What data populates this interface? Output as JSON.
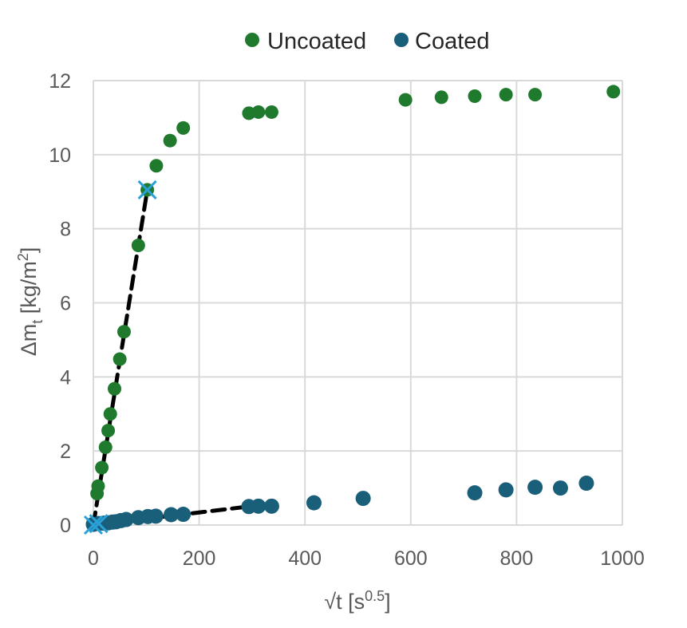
{
  "chart_data": {
    "type": "scatter",
    "xlabel_main": "√t [s",
    "xlabel_sup": "0.5",
    "xlabel_end": "]",
    "ylabel_main": "Δm",
    "ylabel_sub": "t",
    "ylabel_mid": " [kg/m",
    "ylabel_sup": "2",
    "ylabel_end": "]",
    "xlim": [
      0,
      1000
    ],
    "ylim": [
      0,
      12
    ],
    "xticks": [
      0,
      200,
      400,
      600,
      800,
      1000
    ],
    "yticks": [
      0,
      2,
      4,
      6,
      8,
      10,
      12
    ],
    "grid": true,
    "legend_position": "top",
    "series": [
      {
        "name": "Uncoated",
        "color": "#1f7a2e",
        "points": [
          [
            0,
            0.02
          ],
          [
            7,
            0.85
          ],
          [
            9,
            1.05
          ],
          [
            16,
            1.55
          ],
          [
            23,
            2.1
          ],
          [
            28,
            2.55
          ],
          [
            32,
            3.0
          ],
          [
            40,
            3.68
          ],
          [
            50,
            4.48
          ],
          [
            58,
            5.22
          ],
          [
            85,
            7.55
          ],
          [
            102,
            9.05
          ],
          [
            119,
            9.7
          ],
          [
            145,
            10.38
          ],
          [
            170,
            10.72
          ],
          [
            294,
            11.12
          ],
          [
            312,
            11.15
          ],
          [
            337,
            11.15
          ],
          [
            590,
            11.48
          ],
          [
            658,
            11.55
          ],
          [
            721,
            11.58
          ],
          [
            780,
            11.62
          ],
          [
            835,
            11.62
          ],
          [
            983,
            11.7
          ]
        ]
      },
      {
        "name": "Coated",
        "color": "#1a5f7a",
        "points": [
          [
            0,
            0.02
          ],
          [
            10,
            0.04
          ],
          [
            20,
            0.05
          ],
          [
            28,
            0.06
          ],
          [
            36,
            0.08
          ],
          [
            43,
            0.09
          ],
          [
            52,
            0.12
          ],
          [
            62,
            0.15
          ],
          [
            85,
            0.2
          ],
          [
            103,
            0.23
          ],
          [
            118,
            0.24
          ],
          [
            147,
            0.28
          ],
          [
            170,
            0.29
          ],
          [
            294,
            0.5
          ],
          [
            312,
            0.51
          ],
          [
            337,
            0.51
          ],
          [
            417,
            0.6
          ],
          [
            510,
            0.72
          ],
          [
            721,
            0.87
          ],
          [
            780,
            0.95
          ],
          [
            835,
            1.02
          ],
          [
            883,
            1.0
          ],
          [
            932,
            1.13
          ]
        ]
      }
    ],
    "fit_lines": [
      {
        "color": "#000000",
        "points": [
          [
            0,
            0
          ],
          [
            102,
            9.05
          ]
        ]
      },
      {
        "color": "#000000",
        "points": [
          [
            0,
            0
          ],
          [
            294,
            0.5
          ]
        ]
      }
    ],
    "markers_x": {
      "color": "#2aa0d8",
      "points": [
        [
          0,
          0
        ],
        [
          102,
          9.05
        ],
        [
          10,
          0.04
        ]
      ]
    }
  }
}
